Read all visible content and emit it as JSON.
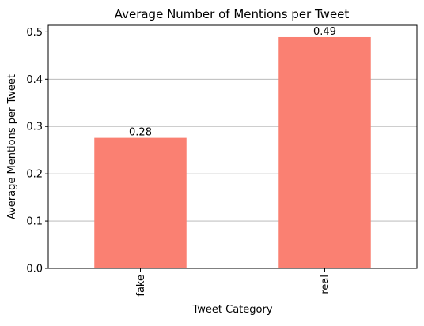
{
  "chart_data": {
    "type": "bar",
    "title": "Average Number of Mentions per Tweet",
    "xlabel": "Tweet Category",
    "ylabel": "Average Mentions per Tweet",
    "categories": [
      "fake",
      "real"
    ],
    "values": [
      0.276,
      0.489
    ],
    "data_labels": [
      "0.28",
      "0.49"
    ],
    "yticks": [
      0.0,
      0.1,
      0.2,
      0.3,
      0.4,
      0.5
    ],
    "ytick_labels": [
      "0.0",
      "0.1",
      "0.2",
      "0.3",
      "0.4",
      "0.5"
    ],
    "ylim": [
      0,
      0.514
    ],
    "bar_color": "#fa8072",
    "grid": "y-axis on",
    "legend": "none"
  }
}
